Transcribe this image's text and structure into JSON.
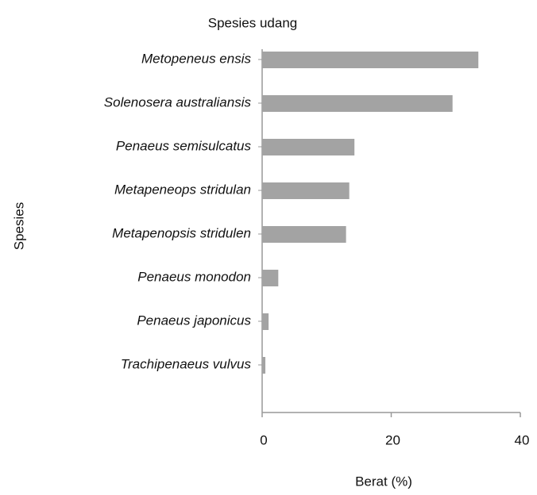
{
  "chart_data": {
    "type": "barh",
    "title": "Spesies udang",
    "xlabel": "Berat (%)",
    "ylabel": "Spesies",
    "categories": [
      "Metopeneus ensis",
      "Solenosera  australiansis",
      "Penaeus semisulcatus",
      "Metapeneops stridulan",
      "Metapenopsis stridulen",
      "Penaeus monodon",
      "Penaeus japonicus",
      "Trachipenaeus vulvus"
    ],
    "values": [
      33.5,
      29.5,
      14.3,
      13.5,
      13,
      2.5,
      1,
      0.5
    ],
    "color": "#a3a3a3",
    "xlim": [
      0,
      40
    ],
    "xticks": [
      0,
      20,
      40
    ]
  }
}
